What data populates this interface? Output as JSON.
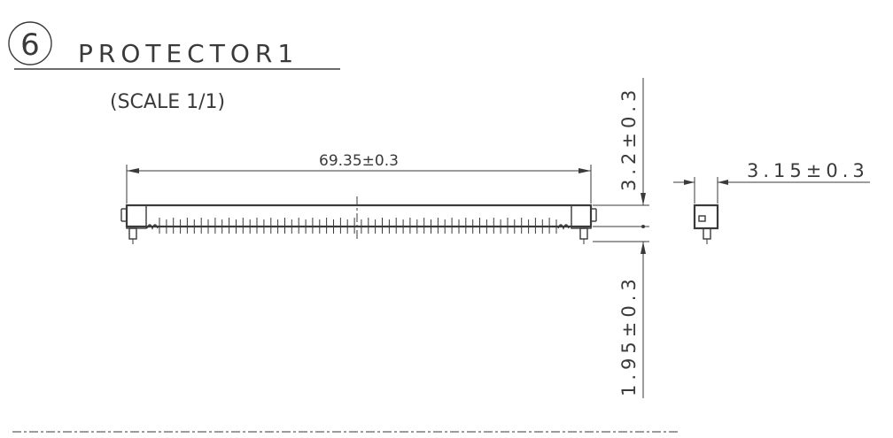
{
  "title": {
    "number": "6",
    "name": "PROTECTOR1",
    "scale": "(SCALE 1/1)"
  },
  "dimensions": {
    "length": "69.35±0.3",
    "depth": "3.15±0.3",
    "top_height": "3.2±0.3",
    "bottom_height": "1.95±0.3"
  },
  "colors": {
    "ink": "#3a3a3a",
    "paper": "#ffffff"
  }
}
